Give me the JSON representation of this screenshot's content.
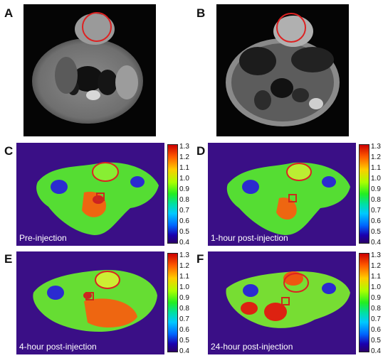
{
  "panels": [
    {
      "id": "A",
      "label": "A",
      "kind": "mri"
    },
    {
      "id": "B",
      "label": "B",
      "kind": "mri"
    },
    {
      "id": "C",
      "label": "C",
      "kind": "map",
      "caption": "Pre-injection"
    },
    {
      "id": "D",
      "label": "D",
      "kind": "map",
      "caption": "1-hour post-injection"
    },
    {
      "id": "E",
      "label": "E",
      "kind": "map",
      "caption": "4-hour post-injection"
    },
    {
      "id": "F",
      "label": "F",
      "kind": "map",
      "caption": "24-hour post-injection"
    }
  ],
  "colorbar": {
    "ticks": [
      "1.3",
      "1.2",
      "1.1",
      "1.0",
      "0.9",
      "0.8",
      "0.7",
      "0.6",
      "0.5",
      "0.4"
    ],
    "colors": [
      "#cc0000",
      "#ff5a00",
      "#ffcc00",
      "#aaff00",
      "#22ee22",
      "#00e0a0",
      "#00c8ff",
      "#0066ff",
      "#1a00b0",
      "#2b0066"
    ]
  },
  "annotations": {
    "circle_color": "#dd2222",
    "square_color": "#cc2a1a"
  }
}
